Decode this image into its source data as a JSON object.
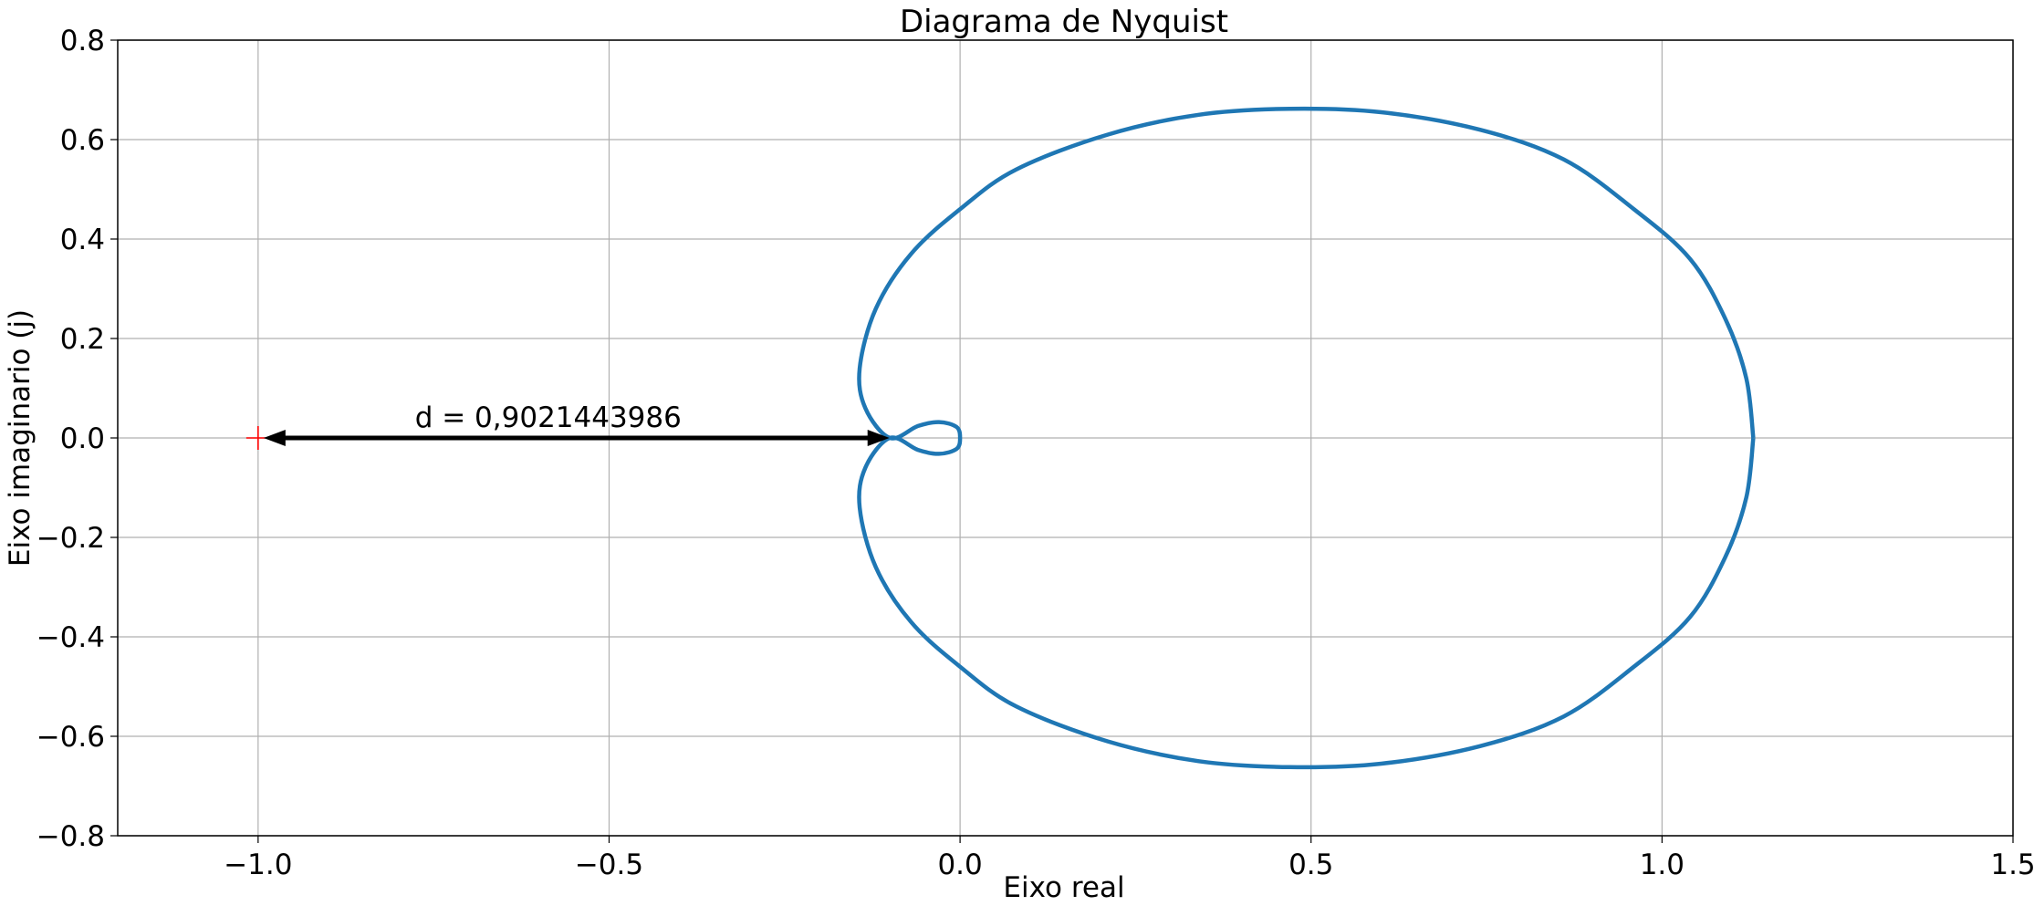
{
  "chart_data": {
    "type": "line",
    "title": "Diagrama de Nyquist",
    "xlabel": "Eixo real",
    "ylabel": "Eixo imaginario (j)",
    "xlim": [
      -1.2,
      1.5
    ],
    "ylim": [
      -0.8,
      0.8
    ],
    "grid": true,
    "x_ticks": [
      -1.0,
      -0.5,
      0.0,
      0.5,
      1.0,
      1.5
    ],
    "x_tick_labels": [
      "−1.0",
      "−0.5",
      "0.0",
      "0.5",
      "1.0",
      "1.5"
    ],
    "y_ticks": [
      -0.8,
      -0.6,
      -0.4,
      -0.2,
      0.0,
      0.2,
      0.4,
      0.6,
      0.8
    ],
    "y_tick_labels": [
      "−0.8",
      "−0.6",
      "−0.4",
      "−0.2",
      "0.0",
      "0.2",
      "0.4",
      "0.6",
      "0.8"
    ],
    "series": [
      {
        "color": "#1f77b4",
        "points": [
          [
            1.13,
            0.0
          ],
          [
            1.12,
            0.12
          ],
          [
            1.09,
            0.24
          ],
          [
            1.04,
            0.36
          ],
          [
            0.96,
            0.46
          ],
          [
            0.86,
            0.56
          ],
          [
            0.74,
            0.62
          ],
          [
            0.6,
            0.655
          ],
          [
            0.47,
            0.662
          ],
          [
            0.34,
            0.65
          ],
          [
            0.21,
            0.61
          ],
          [
            0.08,
            0.54
          ],
          [
            0.0,
            0.46
          ],
          [
            -0.07,
            0.37
          ],
          [
            -0.12,
            0.26
          ],
          [
            -0.143,
            0.14
          ],
          [
            -0.135,
            0.06
          ],
          [
            -0.1,
            0.0
          ],
          [
            -0.06,
            0.024
          ],
          [
            -0.03,
            0.032
          ],
          [
            -0.005,
            0.022
          ],
          [
            0.0,
            0.0
          ],
          [
            -0.005,
            -0.022
          ],
          [
            -0.03,
            -0.032
          ],
          [
            -0.06,
            -0.024
          ],
          [
            -0.1,
            0.0
          ],
          [
            -0.135,
            -0.06
          ],
          [
            -0.143,
            -0.14
          ],
          [
            -0.12,
            -0.26
          ],
          [
            -0.07,
            -0.37
          ],
          [
            0.0,
            -0.46
          ],
          [
            0.08,
            -0.54
          ],
          [
            0.21,
            -0.61
          ],
          [
            0.34,
            -0.65
          ],
          [
            0.47,
            -0.662
          ],
          [
            0.6,
            -0.655
          ],
          [
            0.74,
            -0.62
          ],
          [
            0.86,
            -0.56
          ],
          [
            0.96,
            -0.46
          ],
          [
            1.04,
            -0.36
          ],
          [
            1.09,
            -0.24
          ],
          [
            1.12,
            -0.12
          ],
          [
            1.13,
            0.0
          ]
        ]
      }
    ],
    "critical_point": {
      "x": -1.0,
      "y": 0.0,
      "marker": "+",
      "color": "#ff0000"
    },
    "annotation": {
      "text": "d = 0,9021443986",
      "from": [
        -1.0,
        0.0
      ],
      "to": [
        -0.098,
        0.0
      ],
      "color": "#000000"
    }
  }
}
